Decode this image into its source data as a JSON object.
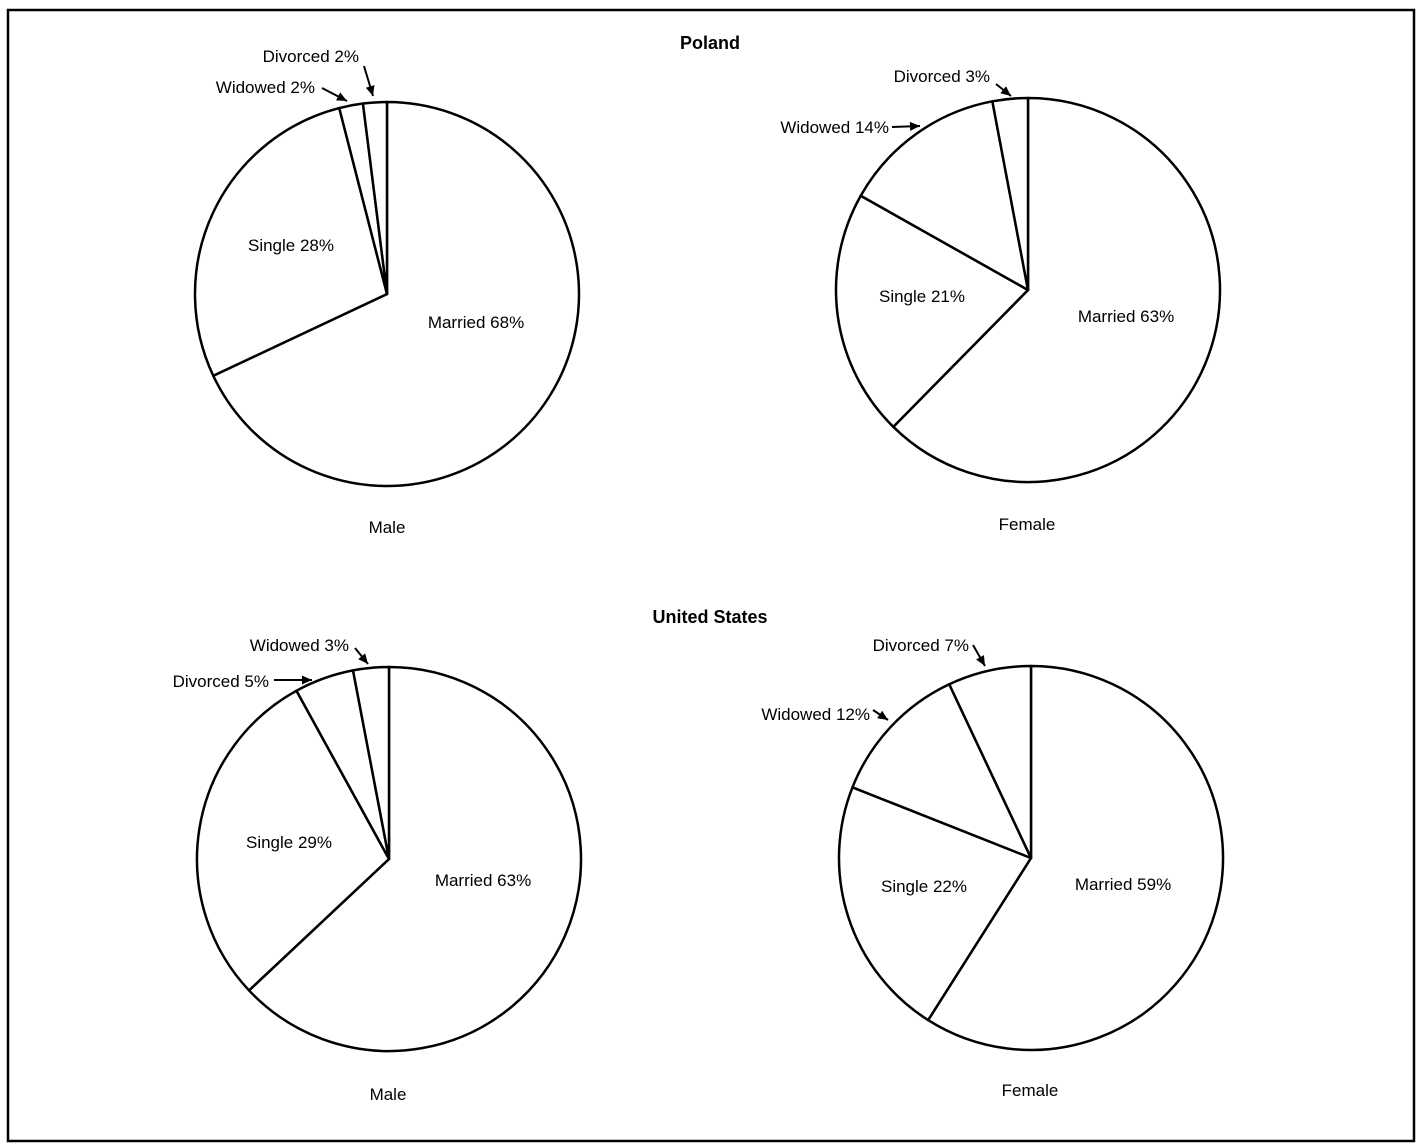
{
  "chart_data": [
    {
      "type": "pie",
      "group_title": "Poland",
      "caption": "Male",
      "slices": [
        {
          "label": "Married",
          "value": 68,
          "text": "Married 68%"
        },
        {
          "label": "Single",
          "value": 28,
          "text": "Single 28%"
        },
        {
          "label": "Widowed",
          "value": 2,
          "text": "Widowed 2%"
        },
        {
          "label": "Divorced",
          "value": 2,
          "text": "Divorced 2%"
        }
      ]
    },
    {
      "type": "pie",
      "group_title": "Poland",
      "caption": "Female",
      "slices": [
        {
          "label": "Married",
          "value": 63,
          "text": "Married 63%"
        },
        {
          "label": "Single",
          "value": 21,
          "text": "Single 21%"
        },
        {
          "label": "Widowed",
          "value": 14,
          "text": "Widowed 14%"
        },
        {
          "label": "Divorced",
          "value": 3,
          "text": "Divorced 3%"
        }
      ]
    },
    {
      "type": "pie",
      "group_title": "United States",
      "caption": "Male",
      "slices": [
        {
          "label": "Married",
          "value": 63,
          "text": "Married 63%"
        },
        {
          "label": "Single",
          "value": 29,
          "text": "Single 29%"
        },
        {
          "label": "Divorced",
          "value": 5,
          "text": "Divorced 5%"
        },
        {
          "label": "Widowed",
          "value": 3,
          "text": "Widowed 3%"
        }
      ]
    },
    {
      "type": "pie",
      "group_title": "United States",
      "caption": "Female",
      "slices": [
        {
          "label": "Married",
          "value": 59,
          "text": "Married 59%"
        },
        {
          "label": "Single",
          "value": 22,
          "text": "Single 22%"
        },
        {
          "label": "Widowed",
          "value": 12,
          "text": "Widowed 12%"
        },
        {
          "label": "Divorced",
          "value": 7,
          "text": "Divorced 7%"
        }
      ]
    }
  ],
  "groups": {
    "top": "Poland",
    "bottom": "United States"
  }
}
